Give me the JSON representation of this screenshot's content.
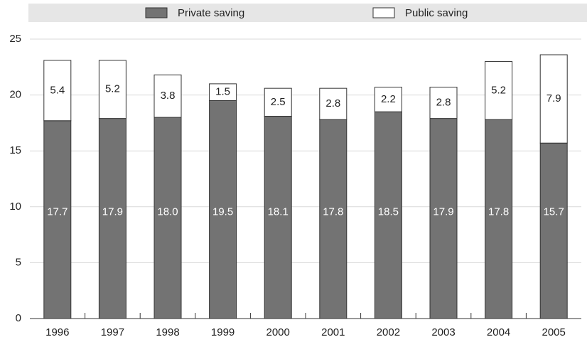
{
  "chart_data": {
    "type": "bar",
    "stacked": true,
    "categories": [
      "1996",
      "1997",
      "1998",
      "1999",
      "2000",
      "2001",
      "2002",
      "2003",
      "2004",
      "2005"
    ],
    "series": [
      {
        "name": "Private saving",
        "color": "#737373",
        "values": [
          17.7,
          17.9,
          18.0,
          19.5,
          18.1,
          17.8,
          18.5,
          17.9,
          17.8,
          15.7
        ],
        "value_labels": [
          "17.7",
          "17.9",
          "18.0",
          "19.5",
          "18.1",
          "17.8",
          "18.5",
          "17.9",
          "17.8",
          "15.7"
        ]
      },
      {
        "name": "Public saving",
        "color": "#ffffff",
        "values": [
          5.4,
          5.2,
          3.8,
          1.5,
          2.5,
          2.8,
          2.2,
          2.8,
          5.2,
          7.9
        ],
        "value_labels": [
          "5.4",
          "5.2",
          "3.8",
          "1.5",
          "2.5",
          "2.8",
          "2.2",
          "2.8",
          "5.2",
          "7.9"
        ]
      }
    ],
    "ylim": [
      0,
      25
    ],
    "yticks": [
      0,
      5,
      10,
      15,
      20,
      25
    ],
    "grid": true,
    "legend": "top"
  }
}
